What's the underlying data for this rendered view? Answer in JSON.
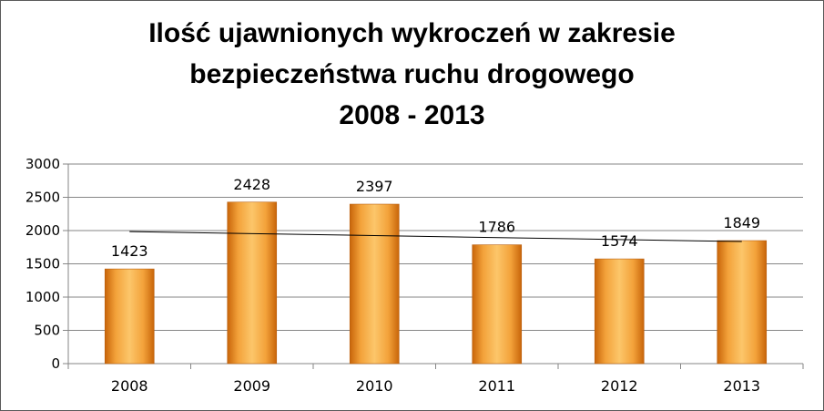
{
  "chart_data": {
    "type": "bar",
    "title_lines": [
      "Ilość ujawnionych wykroczeń w zakresie",
      "bezpieczeństwa ruchu drogowego",
      "2008 - 2013"
    ],
    "categories": [
      "2008",
      "2009",
      "2010",
      "2011",
      "2012",
      "2013"
    ],
    "values": [
      1423,
      2428,
      2397,
      1786,
      1574,
      1849
    ],
    "data_labels": [
      "1423",
      "2428",
      "2397",
      "1786",
      "1574",
      "1849"
    ],
    "trendline": true,
    "yticks": [
      0,
      500,
      1000,
      1500,
      2000,
      2500,
      3000
    ],
    "ylim": [
      0,
      3000
    ],
    "grid": true,
    "legend": "none",
    "bar_color": "#F59A23"
  }
}
